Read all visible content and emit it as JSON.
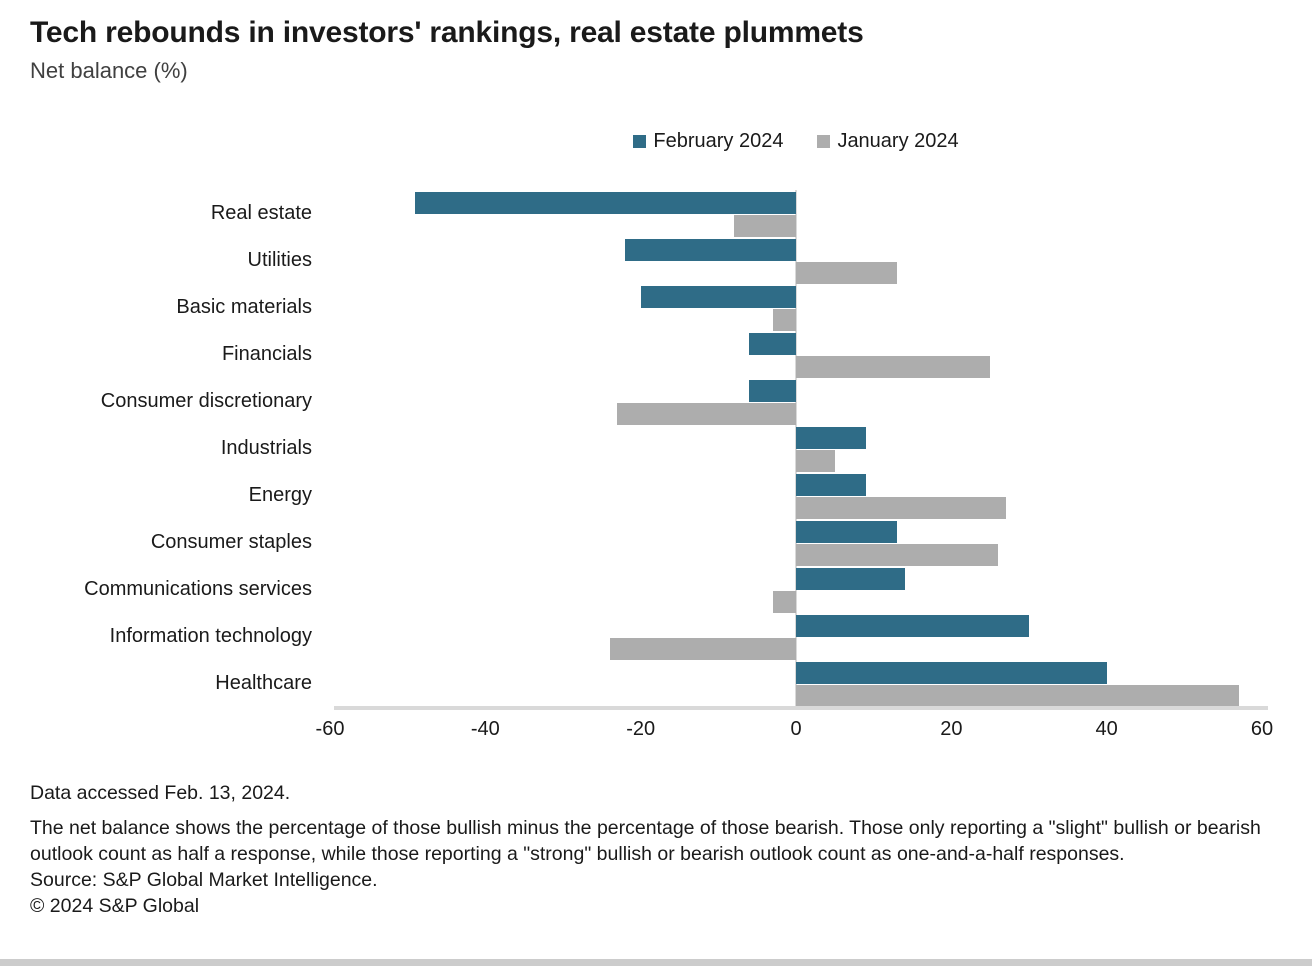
{
  "header": {
    "title": "Tech rebounds in investors' rankings, real estate plummets",
    "subtitle": "Net balance (%)"
  },
  "legend": [
    {
      "label": "February 2024",
      "color": "#2F6C87"
    },
    {
      "label": "January 2024",
      "color": "#ADADAD"
    }
  ],
  "chart_data": {
    "type": "bar",
    "orientation": "horizontal",
    "title": "Tech rebounds in investors' rankings, real estate plummets",
    "ylabel": "",
    "xlabel": "Net balance (%)",
    "xlim": [
      -60,
      60
    ],
    "x_ticks": [
      -60,
      -40,
      -20,
      0,
      20,
      40,
      60
    ],
    "grid": false,
    "legend_position": "top",
    "categories": [
      "Real estate",
      "Utilities",
      "Basic materials",
      "Financials",
      "Consumer discretionary",
      "Industrials",
      "Energy",
      "Consumer staples",
      "Communications services",
      "Information technology",
      "Healthcare"
    ],
    "series": [
      {
        "name": "February 2024",
        "color": "#2F6C87",
        "values": [
          -49,
          -22,
          -20,
          -6,
          -6,
          9,
          9,
          13,
          14,
          30,
          40
        ]
      },
      {
        "name": "January 2024",
        "color": "#ADADAD",
        "values": [
          -8,
          13,
          -3,
          25,
          -23,
          5,
          27,
          26,
          -3,
          -24,
          57
        ]
      }
    ],
    "colors": {
      "axis_line": "#d9d9d9"
    }
  },
  "footer": {
    "accessed": "Data accessed Feb. 13, 2024.",
    "note": "The net balance shows the percentage of those bullish minus the percentage of those bearish. Those only reporting a \"slight\" bullish or bearish outlook count as half a response, while those reporting a \"strong\" bullish or bearish outlook count as one-and-a-half responses.",
    "source": "Source: S&P Global Market Intelligence.",
    "copyright": "© 2024 S&P Global"
  }
}
